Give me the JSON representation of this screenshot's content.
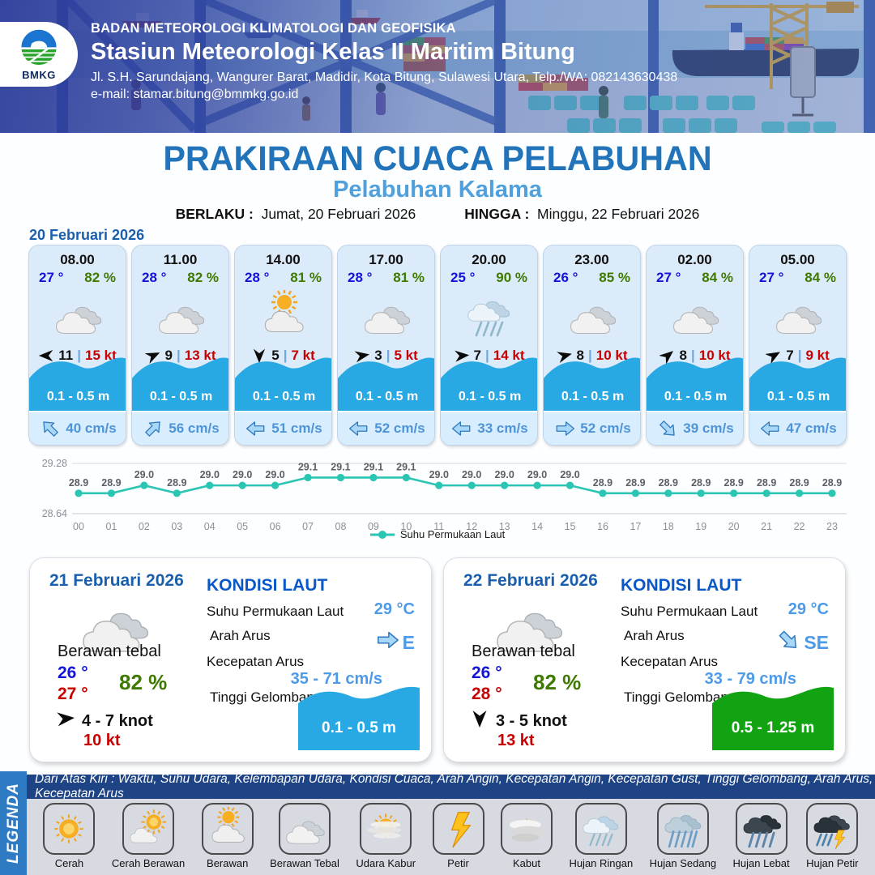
{
  "header": {
    "org_line": "BADAN METEOROLOGI KLIMATOLOGI DAN GEOFISIKA",
    "station": "Stasiun Meteorologi Kelas II Maritim Bitung",
    "address": "Jl. S.H. Sarundajang, Wangurer Barat, Madidir, Kota Bitung, Sulawesi Utara, Telp./WA: 082143630438",
    "email": "e-mail: stamar.bitung@bmmkg.go.id",
    "logo_text": "BMKG"
  },
  "title": {
    "main": "PRAKIRAAN CUACA PELABUHAN",
    "subtitle": "Pelabuhan Kalama"
  },
  "validity": {
    "berlaku_label": "BERLAKU :",
    "berlaku_value": "Jumat, 20 Februari 2026",
    "hingga_label": "HINGGA :",
    "hingga_value": "Minggu, 22 Februari 2026"
  },
  "day1": {
    "date": "20 Februari 2026",
    "hours": [
      {
        "time": "08.00",
        "temp": "27 °",
        "humidity": "82 %",
        "icon": "berawan-tebal",
        "wind_speed": "11",
        "wind_gust": "15 kt",
        "wind_deg": 180,
        "wave": "0.1 - 0.5 m",
        "current_speed": "40 cm/s",
        "current_deg": -135
      },
      {
        "time": "11.00",
        "temp": "28 °",
        "humidity": "82 %",
        "icon": "berawan-tebal",
        "wind_speed": "9",
        "wind_gust": "13 kt",
        "wind_deg": -25,
        "wave": "0.1 - 0.5 m",
        "current_speed": "56 cm/s",
        "current_deg": -45
      },
      {
        "time": "14.00",
        "temp": "28 °",
        "humidity": "81 %",
        "icon": "berawan",
        "wind_speed": "5",
        "wind_gust": "7 kt",
        "wind_deg": 90,
        "wave": "0.1 - 0.5 m",
        "current_speed": "51 cm/s",
        "current_deg": 180
      },
      {
        "time": "17.00",
        "temp": "28 °",
        "humidity": "81 %",
        "icon": "berawan-tebal",
        "wind_speed": "3",
        "wind_gust": "5 kt",
        "wind_deg": -10,
        "wave": "0.1 - 0.5 m",
        "current_speed": "52 cm/s",
        "current_deg": 180
      },
      {
        "time": "20.00",
        "temp": "25 °",
        "humidity": "90 %",
        "icon": "hujan-ringan",
        "wind_speed": "7",
        "wind_gust": "14 kt",
        "wind_deg": -5,
        "wave": "0.1 - 0.5 m",
        "current_speed": "33 cm/s",
        "current_deg": 180
      },
      {
        "time": "23.00",
        "temp": "26 °",
        "humidity": "85 %",
        "icon": "berawan-tebal",
        "wind_speed": "8",
        "wind_gust": "10 kt",
        "wind_deg": -15,
        "wave": "0.1 - 0.5 m",
        "current_speed": "52 cm/s",
        "current_deg": 0
      },
      {
        "time": "02.00",
        "temp": "27 °",
        "humidity": "84 %",
        "icon": "berawan-tebal",
        "wind_speed": "8",
        "wind_gust": "10 kt",
        "wind_deg": -40,
        "wave": "0.1 - 0.5 m",
        "current_speed": "39 cm/s",
        "current_deg": 45
      },
      {
        "time": "05.00",
        "temp": "27 °",
        "humidity": "84 %",
        "icon": "berawan-tebal",
        "wind_speed": "7",
        "wind_gust": "9 kt",
        "wind_deg": -30,
        "wave": "0.1 - 0.5 m",
        "current_speed": "47 cm/s",
        "current_deg": 180
      }
    ]
  },
  "chart_data": {
    "type": "line",
    "x": [
      "00",
      "01",
      "02",
      "03",
      "04",
      "05",
      "06",
      "07",
      "08",
      "09",
      "10",
      "11",
      "12",
      "13",
      "14",
      "15",
      "16",
      "17",
      "18",
      "19",
      "20",
      "21",
      "22",
      "23"
    ],
    "values": [
      28.9,
      28.9,
      29.0,
      28.9,
      29.0,
      29.0,
      29.0,
      29.1,
      29.1,
      29.1,
      29.1,
      29.0,
      29.0,
      29.0,
      29.0,
      29.0,
      28.9,
      28.9,
      28.9,
      28.9,
      28.9,
      28.9,
      28.9,
      28.9
    ],
    "series_label": "Suhu Permukaan Laut",
    "ylim": [
      28.64,
      29.28
    ],
    "yticks": [
      "29.28",
      "28.64"
    ],
    "line_color": "#2BC5B4",
    "grid": true,
    "legend_position": "bottom"
  },
  "day2": {
    "date": "21 Februari 2026",
    "condition": "Berawan tebal",
    "icon": "berawan-tebal",
    "temp_min": "26 °",
    "temp_max": "27 °",
    "humidity": "82 %",
    "wind_range": "4  - 7 knot",
    "wind_deg": -5,
    "gust": "10 kt",
    "sea": {
      "title": "KONDISI LAUT",
      "sst_label": "Suhu Permukaan Laut",
      "sst": "29 °C",
      "dir_label": "Arah Arus",
      "dir": "E",
      "dir_deg": 0,
      "speed_label": "Kecepatan Arus",
      "speed": "35 - 71 cm/s",
      "wave_label": "Tinggi Gelombang",
      "wave": "0.1 - 0.5 m",
      "wave_color": "#29A9E3"
    }
  },
  "day3": {
    "date": "22 Februari 2026",
    "condition": "Berawan tebal",
    "icon": "berawan-tebal",
    "temp_min": "26 °",
    "temp_max": "28 °",
    "humidity": "82 %",
    "wind_range": "3  - 5 knot",
    "wind_deg": 90,
    "gust": "13 kt",
    "sea": {
      "title": "KONDISI LAUT",
      "sst_label": "Suhu Permukaan Laut",
      "sst": "29 °C",
      "dir_label": "Arah Arus",
      "dir": "SE",
      "dir_deg": 45,
      "speed_label": "Kecepatan Arus",
      "speed": "33 - 79 cm/s",
      "wave_label": "Tinggi Gelombang",
      "wave": "0.5 - 1.25 m",
      "wave_color": "#12A312"
    }
  },
  "legend": {
    "label": "LEGENDA",
    "note": "Dari Atas Kiri : Waktu, Suhu Udara, Kelembapan Udara, Kondisi Cuaca, Arah Angin, Kecepatan Angin, Kecepatan Gust, Tinggi Gelombang, Arah Arus, Kecepatan Arus",
    "items": [
      {
        "icon": "cerah",
        "label": "Cerah"
      },
      {
        "icon": "cerah-berawan",
        "label": "Cerah Berawan"
      },
      {
        "icon": "berawan",
        "label": "Berawan"
      },
      {
        "icon": "berawan-tebal",
        "label": "Berawan Tebal"
      },
      {
        "icon": "udara-kabur",
        "label": "Udara Kabur"
      },
      {
        "icon": "petir",
        "label": "Petir"
      },
      {
        "icon": "kabut",
        "label": "Kabut"
      },
      {
        "icon": "hujan-ringan",
        "label": "Hujan Ringan"
      },
      {
        "icon": "hujan-sedang",
        "label": "Hujan Sedang"
      },
      {
        "icon": "hujan-lebat",
        "label": "Hujan Lebat"
      },
      {
        "icon": "hujan-petir",
        "label": "Hujan Petir"
      }
    ]
  },
  "colors": {
    "title_blue": "#2173BA",
    "subtitle_blue": "#4FA0DC",
    "date_blue": "#1A5FAE",
    "temp_blue": "#1414D8",
    "temp_red": "#C80000",
    "humidity_green": "#3F7A00",
    "wave_blue": "#29A9E3",
    "wave_green": "#12A312",
    "current_text": "#4D94D9",
    "legend_band": "#2E7BC4",
    "legend_note_bg": "#1E4486",
    "chart_line": "#2BC5B4"
  }
}
